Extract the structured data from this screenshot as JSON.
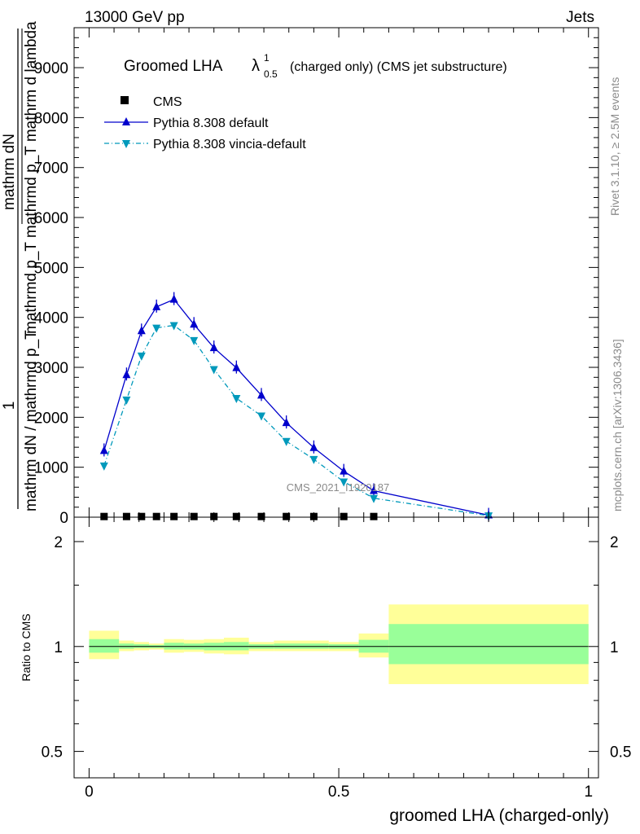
{
  "header": {
    "left": "13000 GeV pp",
    "right": "Jets"
  },
  "side_labels": {
    "rivet": "Rivet 3.1.10, ≥ 2.5M events",
    "mcplots": "mcplots.cern.ch [arXiv:1306.3436]"
  },
  "watermark": "CMS_2021_I1920187",
  "chart_data": {
    "type": "line",
    "title": {
      "main": "Groomed LHA",
      "symbol": "λ",
      "superscript": "1",
      "subscript": "0.5",
      "suffix": "(charged only) (CMS jet substructure)"
    },
    "ylabel_parts": {
      "numer": "1",
      "denom": "mathrm dN / mathrmd p_T",
      "right_top": "mathrm dN",
      "right_bottom": "mathrmd p_T mathrmd p_T mathrm d lambda"
    },
    "ylim": [
      0,
      9800
    ],
    "yticks": [
      0,
      1000,
      2000,
      3000,
      4000,
      5000,
      6000,
      7000,
      8000,
      9000
    ],
    "ytick_labels": [
      "0",
      "1000",
      "2000",
      "3000",
      "4000",
      "5000",
      "6000",
      "7000",
      "8000",
      "9000"
    ],
    "xlim": [
      -0.03,
      1.02
    ],
    "xticks": [
      0,
      0.5,
      1
    ],
    "xtick_labels": [
      "0",
      "0.5",
      "1"
    ],
    "xlabel": "groomed LHA (charged-only)",
    "legend_position": "top-left",
    "series": [
      {
        "name": "CMS",
        "marker": "square",
        "color": "#000000",
        "x": [
          0.03,
          0.075,
          0.105,
          0.135,
          0.17,
          0.21,
          0.25,
          0.295,
          0.345,
          0.395,
          0.45,
          0.51,
          0.57
        ],
        "y": [
          5,
          5,
          5,
          5,
          5,
          5,
          5,
          5,
          5,
          5,
          5,
          5,
          5
        ]
      },
      {
        "name": "Pythia 8.308 default",
        "marker": "triangle-up",
        "color": "#0000cc",
        "x": [
          0.03,
          0.075,
          0.105,
          0.135,
          0.17,
          0.21,
          0.25,
          0.295,
          0.345,
          0.395,
          0.45,
          0.51,
          0.57,
          0.8
        ],
        "y": [
          1330,
          2850,
          3730,
          4210,
          4360,
          3860,
          3390,
          2990,
          2440,
          1890,
          1390,
          920,
          530,
          40
        ]
      },
      {
        "name": "Pythia 8.308 vincia-default",
        "marker": "triangle-down",
        "color": "#0099bb",
        "x": [
          0.03,
          0.075,
          0.105,
          0.135,
          0.17,
          0.21,
          0.25,
          0.295,
          0.345,
          0.395,
          0.45,
          0.51,
          0.57,
          0.8
        ],
        "y": [
          1030,
          2350,
          3230,
          3790,
          3840,
          3540,
          2960,
          2380,
          2030,
          1520,
          1160,
          710,
          380,
          30
        ]
      }
    ],
    "ratio": {
      "ylabel": "Ratio to CMS",
      "ylim": [
        0.42,
        2.35
      ],
      "log": true,
      "yticks": [
        0.5,
        1,
        2
      ],
      "ytick_labels": [
        "0.5",
        "1",
        "2"
      ],
      "bands": [
        {
          "x0": 0.0,
          "x1": 0.06,
          "green": [
            0.96,
            1.05
          ],
          "yellow": [
            0.92,
            1.11
          ]
        },
        {
          "x0": 0.06,
          "x1": 0.09,
          "green": [
            0.985,
            1.02
          ],
          "yellow": [
            0.97,
            1.04
          ]
        },
        {
          "x0": 0.09,
          "x1": 0.12,
          "green": [
            0.99,
            1.015
          ],
          "yellow": [
            0.975,
            1.03
          ]
        },
        {
          "x0": 0.12,
          "x1": 0.15,
          "green": [
            0.99,
            1.01
          ],
          "yellow": [
            0.98,
            1.02
          ]
        },
        {
          "x0": 0.15,
          "x1": 0.19,
          "green": [
            0.98,
            1.025
          ],
          "yellow": [
            0.96,
            1.05
          ]
        },
        {
          "x0": 0.19,
          "x1": 0.23,
          "green": [
            0.98,
            1.02
          ],
          "yellow": [
            0.965,
            1.045
          ]
        },
        {
          "x0": 0.23,
          "x1": 0.27,
          "green": [
            0.975,
            1.025
          ],
          "yellow": [
            0.955,
            1.05
          ]
        },
        {
          "x0": 0.27,
          "x1": 0.32,
          "green": [
            0.975,
            1.03
          ],
          "yellow": [
            0.95,
            1.06
          ]
        },
        {
          "x0": 0.32,
          "x1": 0.37,
          "green": [
            0.985,
            1.015
          ],
          "yellow": [
            0.97,
            1.03
          ]
        },
        {
          "x0": 0.37,
          "x1": 0.42,
          "green": [
            0.985,
            1.02
          ],
          "yellow": [
            0.97,
            1.04
          ]
        },
        {
          "x0": 0.42,
          "x1": 0.48,
          "green": [
            0.985,
            1.02
          ],
          "yellow": [
            0.97,
            1.04
          ]
        },
        {
          "x0": 0.48,
          "x1": 0.54,
          "green": [
            0.985,
            1.015
          ],
          "yellow": [
            0.97,
            1.03
          ]
        },
        {
          "x0": 0.54,
          "x1": 0.6,
          "green": [
            0.96,
            1.045
          ],
          "yellow": [
            0.93,
            1.09
          ]
        },
        {
          "x0": 0.6,
          "x1": 1.0,
          "green": [
            0.89,
            1.16
          ],
          "yellow": [
            0.78,
            1.32
          ]
        }
      ]
    }
  }
}
